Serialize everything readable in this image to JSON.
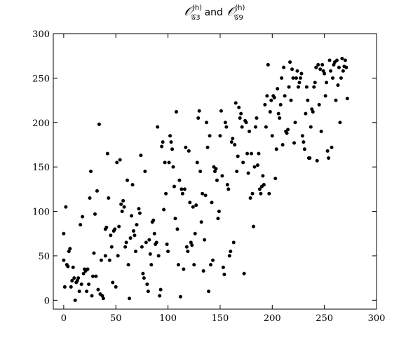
{
  "chart_data": {
    "type": "scatter",
    "title": {
      "left": {
        "symbol": "𝒪",
        "sup": "(h)",
        "sub": "𝒢3"
      },
      "joiner": "and",
      "right": {
        "symbol": "𝒪",
        "sup": "(h)",
        "sub": "𝒢9"
      }
    },
    "color": "#000000",
    "xlim": [
      -10,
      300
    ],
    "ylim": [
      -10,
      300
    ],
    "xticks": [
      0,
      50,
      100,
      150,
      200,
      250,
      300
    ],
    "yticks": [
      0,
      50,
      100,
      150,
      200,
      250,
      300
    ],
    "x": [
      0,
      0,
      1,
      2,
      3,
      4,
      5,
      6,
      7,
      8,
      9,
      10,
      11,
      12,
      13,
      14,
      15,
      16,
      17,
      18,
      19,
      20,
      21,
      22,
      23,
      24,
      25,
      26,
      27,
      28,
      29,
      30,
      31,
      32,
      33,
      34,
      35,
      36,
      37,
      38,
      40,
      40,
      41,
      42,
      43,
      44,
      45,
      46,
      47,
      48,
      49,
      50,
      51,
      52,
      53,
      54,
      55,
      56,
      57,
      58,
      59,
      60,
      61,
      62,
      63,
      64,
      65,
      66,
      67,
      68,
      69,
      70,
      72,
      73,
      74,
      75,
      76,
      77,
      78,
      79,
      80,
      81,
      82,
      83,
      84,
      85,
      86,
      87,
      88,
      89,
      90,
      91,
      92,
      93,
      94,
      95,
      96,
      97,
      98,
      99,
      100,
      101,
      102,
      103,
      104,
      105,
      106,
      107,
      108,
      109,
      110,
      111,
      112,
      113,
      114,
      115,
      116,
      117,
      118,
      119,
      120,
      121,
      122,
      123,
      124,
      125,
      126,
      127,
      128,
      129,
      130,
      131,
      132,
      133,
      134,
      135,
      136,
      137,
      138,
      139,
      140,
      141,
      142,
      143,
      144,
      145,
      146,
      147,
      148,
      149,
      150,
      151,
      152,
      153,
      154,
      155,
      156,
      157,
      158,
      159,
      160,
      161,
      162,
      163,
      164,
      165,
      166,
      167,
      168,
      169,
      170,
      171,
      172,
      173,
      174,
      175,
      176,
      177,
      178,
      179,
      180,
      181,
      182,
      183,
      184,
      185,
      186,
      187,
      188,
      189,
      190,
      191,
      192,
      193,
      194,
      195,
      196,
      197,
      198,
      199,
      200,
      201,
      202,
      203,
      204,
      205,
      206,
      207,
      208,
      209,
      210,
      211,
      212,
      213,
      214,
      215,
      216,
      217,
      218,
      219,
      220,
      221,
      222,
      223,
      224,
      225,
      226,
      227,
      228,
      229,
      230,
      231,
      232,
      233,
      234,
      235,
      236,
      237,
      238,
      239,
      240,
      241,
      242,
      243,
      244,
      245,
      246,
      247,
      248,
      249,
      250,
      251,
      252,
      253,
      254,
      255,
      256,
      257,
      258,
      259,
      260,
      261,
      262,
      263,
      264,
      265,
      266,
      267,
      268,
      269,
      270,
      271,
      272
    ],
    "values": [
      75,
      45,
      15,
      105,
      40,
      38,
      55,
      58,
      15,
      22,
      37,
      25,
      0,
      20,
      22,
      25,
      10,
      85,
      18,
      94,
      30,
      35,
      33,
      10,
      35,
      18,
      115,
      145,
      5,
      27,
      53,
      97,
      27,
      123,
      12,
      198,
      7,
      45,
      5,
      2,
      50,
      80,
      82,
      165,
      115,
      45,
      73,
      60,
      20,
      78,
      80,
      15,
      155,
      50,
      83,
      158,
      108,
      100,
      112,
      105,
      60,
      65,
      135,
      40,
      2,
      70,
      95,
      130,
      78,
      73,
      55,
      85,
      103,
      98,
      163,
      60,
      30,
      25,
      145,
      65,
      18,
      10,
      68,
      52,
      40,
      88,
      90,
      75,
      63,
      65,
      195,
      50,
      5,
      12,
      173,
      178,
      102,
      155,
      120,
      63,
      55,
      155,
      185,
      178,
      170,
      150,
      128,
      92,
      212,
      80,
      40,
      135,
      4,
      125,
      120,
      35,
      125,
      172,
      60,
      55,
      168,
      110,
      65,
      62,
      105,
      40,
      75,
      107,
      155,
      205,
      213,
      145,
      88,
      120,
      33,
      68,
      118,
      200,
      172,
      10,
      185,
      40,
      110,
      45,
      150,
      145,
      148,
      135,
      92,
      100,
      185,
      213,
      140,
      37,
      29,
      200,
      195,
      130,
      125,
      50,
      55,
      178,
      182,
      65,
      175,
      222,
      145,
      162,
      217,
      205,
      210,
      195,
      155,
      30,
      202,
      200,
      165,
      143,
      190,
      115,
      165,
      120,
      83,
      150,
      195,
      205,
      152,
      165,
      125,
      120,
      128,
      140,
      130,
      220,
      195,
      230,
      265,
      120,
      212,
      225,
      185,
      230,
      228,
      137,
      170,
      238,
      210,
      205,
      220,
      250,
      175,
      262,
      230,
      190,
      188,
      192,
      240,
      268,
      225,
      260,
      250,
      177,
      200,
      250,
      258,
      240,
      245,
      250,
      255,
      185,
      178,
      170,
      210,
      240,
      225,
      160,
      160,
      195,
      215,
      212,
      240,
      245,
      262,
      157,
      265,
      220,
      260,
      190,
      265,
      258,
      255,
      230,
      245,
      168,
      160,
      270,
      258,
      172,
      250,
      265,
      268,
      225,
      270,
      242,
      262,
      200,
      250,
      272,
      258,
      263,
      270,
      262,
      227
    ]
  }
}
